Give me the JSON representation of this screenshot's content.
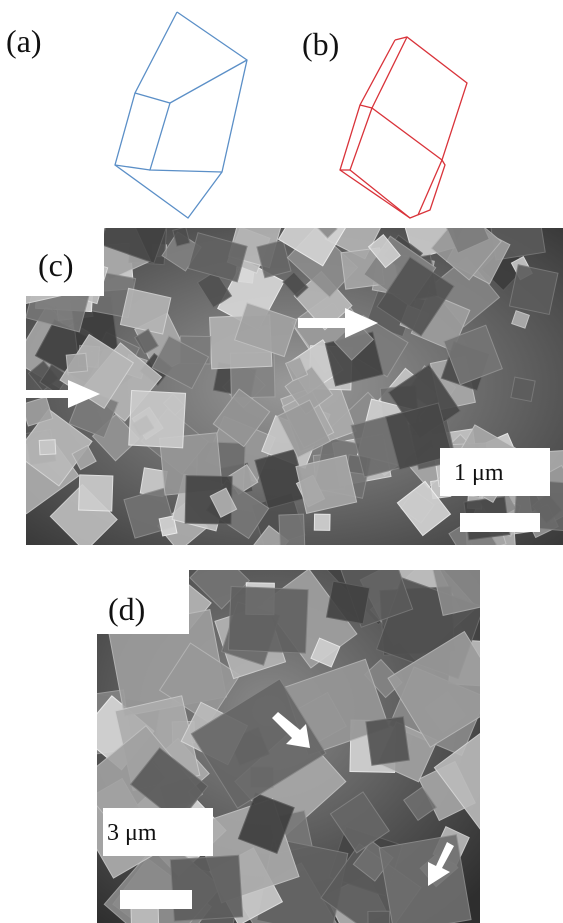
{
  "panels": [
    {
      "label": "(a)"
    },
    {
      "label": "(b)"
    },
    {
      "label": "(c)",
      "scale_bar": "1 μm"
    },
    {
      "label": "(d)",
      "scale_bar": "3 μm"
    }
  ]
}
